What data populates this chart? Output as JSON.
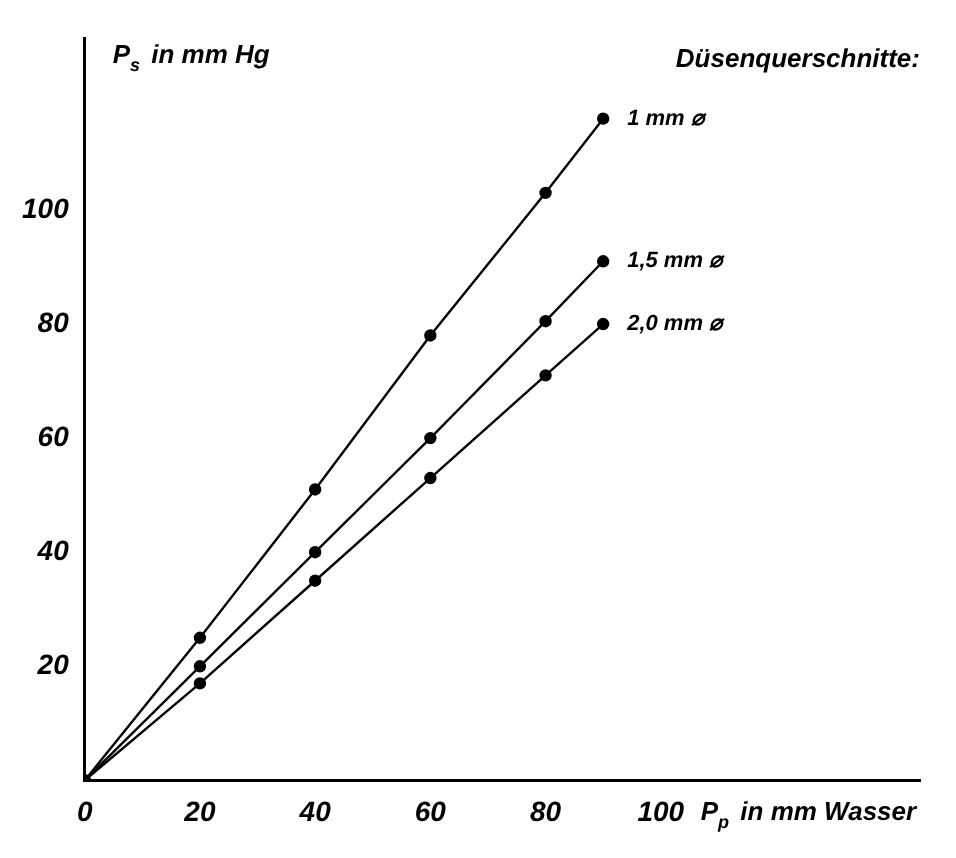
{
  "chart_data": {
    "type": "line",
    "xlabel": "P$_{p}$ in mm Wasser",
    "ylabel": "P$_{s}$ in mm Hg",
    "legend_title": "Düsenquerschnitte:",
    "x": [
      0,
      20,
      40,
      60,
      80,
      90
    ],
    "series": [
      {
        "name": "1 mm ⌀",
        "color": "#000000",
        "values": [
          0,
          25,
          51,
          78,
          103,
          116
        ]
      },
      {
        "name": "1,5 mm ⌀",
        "color": "#000000",
        "values": [
          0,
          20,
          40,
          60,
          80.5,
          91
        ]
      },
      {
        "name": "2,0 mm ⌀",
        "color": "#000000",
        "values": [
          0,
          17,
          35,
          53,
          71,
          80
        ]
      }
    ],
    "xlim": [
      0,
      145
    ],
    "ylim": [
      0,
      130
    ],
    "xticks": [
      0,
      20,
      40,
      60,
      80,
      100
    ],
    "yticks": [
      20,
      40,
      60,
      80,
      100
    ],
    "grid": false,
    "marker": "circle",
    "line_style": "solid"
  }
}
